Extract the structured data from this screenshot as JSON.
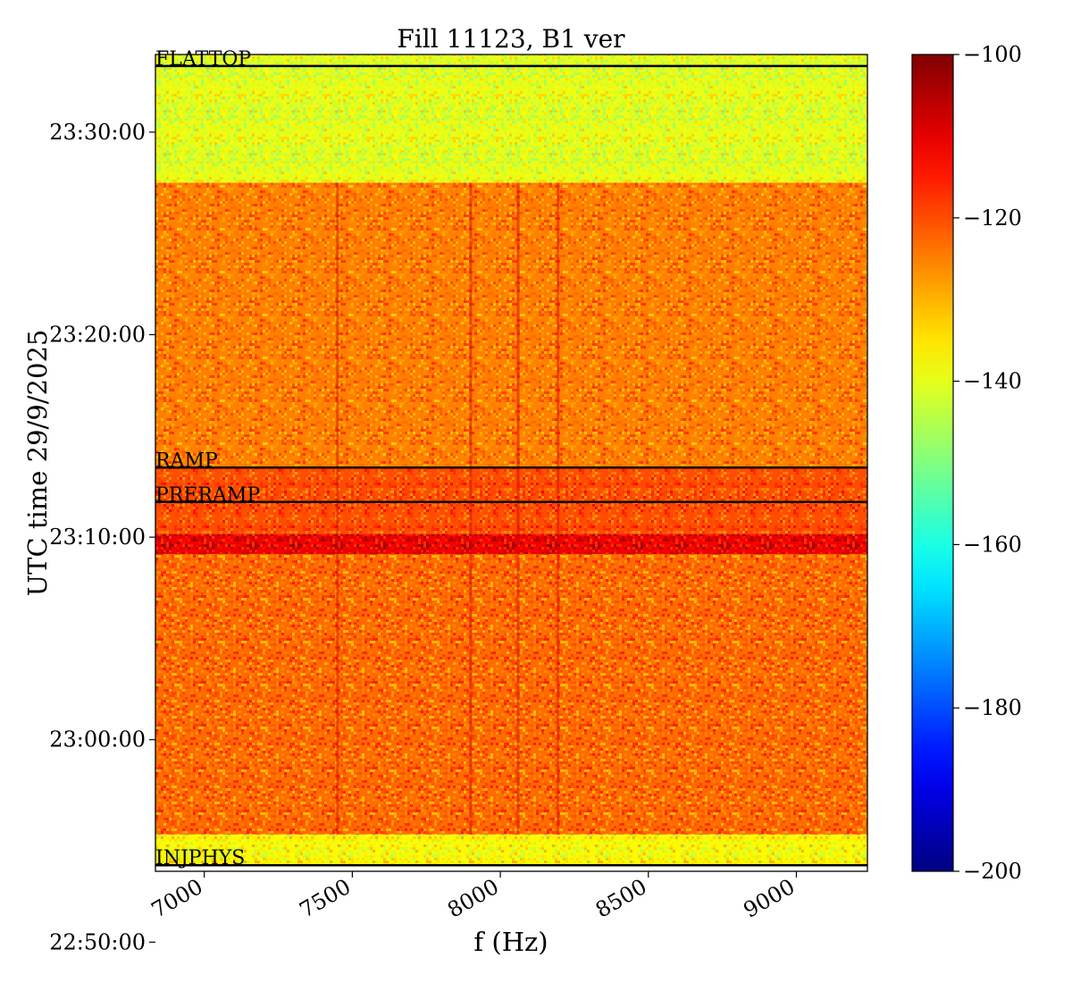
{
  "chart_data": {
    "type": "heatmap",
    "title": "Fill 11123, B1 ver",
    "xlabel": "f (Hz)",
    "ylabel": "UTC time 29/9/2025",
    "xlim": [
      6835,
      9240
    ],
    "x_ticks": [
      {
        "value": 7000,
        "label": "7000"
      },
      {
        "value": 7500,
        "label": "7500"
      },
      {
        "value": 8000,
        "label": "8000"
      },
      {
        "value": 8500,
        "label": "8500"
      },
      {
        "value": 9000,
        "label": "9000"
      }
    ],
    "ylim_seconds_of_day": [
      82410,
      84830
    ],
    "y_ticks": [
      {
        "value": 82200,
        "label": "22:50:00"
      },
      {
        "value": 82800,
        "label": "23:00:00"
      },
      {
        "value": 83400,
        "label": "23:10:00"
      },
      {
        "value": 84000,
        "label": "23:20:00"
      },
      {
        "value": 84600,
        "label": "23:30:00"
      }
    ],
    "colormap": "jet",
    "clim": [
      -200,
      -100
    ],
    "colorbar_ticks": [
      {
        "value": -100,
        "label": "−100"
      },
      {
        "value": -120,
        "label": "−120"
      },
      {
        "value": -140,
        "label": "−140"
      },
      {
        "value": -160,
        "label": "−160"
      },
      {
        "value": -180,
        "label": "−180"
      },
      {
        "value": -200,
        "label": "−200"
      }
    ],
    "phases": [
      {
        "name": "INJPHYS",
        "time": 82428
      },
      {
        "name": "PRERAMP",
        "time": 83504
      },
      {
        "name": "RAMP",
        "time": 83606
      },
      {
        "name": "FLATTOP",
        "time": 84796
      }
    ],
    "regions": [
      {
        "time_range": [
          82428,
          82519
        ],
        "mean_level": -137
      },
      {
        "time_range": [
          82519,
          83350
        ],
        "mean_level": -123
      },
      {
        "time_range": [
          83350,
          83410
        ],
        "mean_level": -111
      },
      {
        "time_range": [
          83410,
          83606
        ],
        "mean_level": -120
      },
      {
        "time_range": [
          83606,
          84450
        ],
        "mean_level": -125
      },
      {
        "time_range": [
          84450,
          84830
        ],
        "mean_level": -140
      }
    ],
    "vertical_lines_hz": [
      7450,
      7900,
      8060,
      8195
    ]
  }
}
